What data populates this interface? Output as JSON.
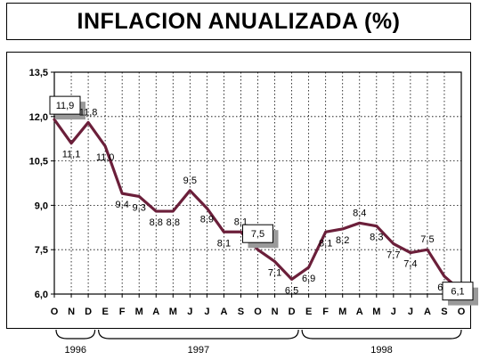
{
  "title": "INFLACION ANUALIZADA (%)",
  "chart_data": {
    "type": "line",
    "title": "INFLACION ANUALIZADA (%)",
    "xlabel": "",
    "ylabel": "",
    "ylim": [
      6.0,
      13.5
    ],
    "yticks": [
      "13,5",
      "12,0",
      "10,5",
      "9,0",
      "7,5",
      "6,0"
    ],
    "ytick_values": [
      13.5,
      12.0,
      10.5,
      9.0,
      7.5,
      6.0
    ],
    "grid": true,
    "categories": [
      "O",
      "N",
      "D",
      "E",
      "F",
      "M",
      "A",
      "M",
      "J",
      "J",
      "A",
      "S",
      "O",
      "N",
      "D",
      "E",
      "F",
      "M",
      "A",
      "M",
      "J",
      "J",
      "A",
      "S",
      "O"
    ],
    "years": [
      {
        "label": "1996",
        "from": 0,
        "to": 2
      },
      {
        "label": "1997",
        "from": 3,
        "to": 14
      },
      {
        "label": "1998",
        "from": 15,
        "to": 24
      }
    ],
    "series": [
      {
        "color": "#6b1f3a",
        "values": [
          11.9,
          11.1,
          11.8,
          11.0,
          9.4,
          9.3,
          8.8,
          8.8,
          9.5,
          8.9,
          8.1,
          8.1,
          7.5,
          7.1,
          6.5,
          6.9,
          8.1,
          8.2,
          8.4,
          8.3,
          7.7,
          7.4,
          7.5,
          6.6,
          6.1
        ],
        "labels": [
          "11,9",
          "11,1",
          "11,8",
          "11,0",
          "9,4",
          "9,3",
          "8,8",
          "8,8",
          "9,5",
          "8,9",
          "8,1",
          "8,1",
          "7,5",
          "7,1",
          "6,5",
          "6,9",
          "8,1",
          "8,2",
          "8,4",
          "8,3",
          "7,7",
          "7,4",
          "7,5",
          "6,6",
          "6,1"
        ]
      }
    ],
    "boxed_labels": [
      0,
      12,
      24
    ]
  }
}
